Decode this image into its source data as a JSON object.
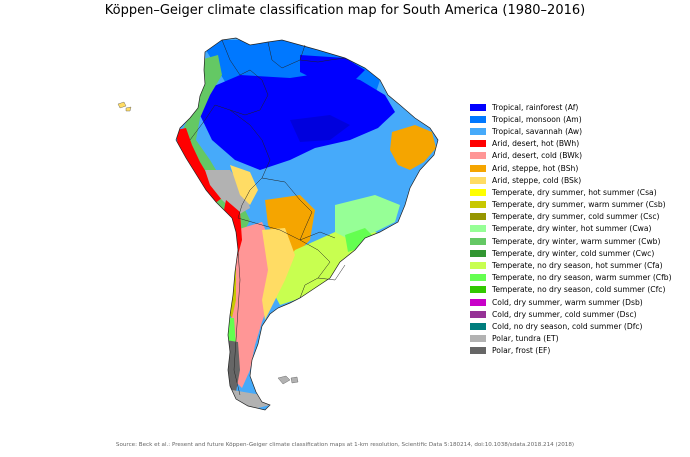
{
  "title": "Köppen–Geiger climate classification map for South America (1980–2016)",
  "legend": [
    {
      "label": "Tropical, rainforest (Af)",
      "color": "#0000ff"
    },
    {
      "label": "Tropical, monsoon (Am)",
      "color": "#0078ff"
    },
    {
      "label": "Tropical, savannah (Aw)",
      "color": "#46aafa"
    },
    {
      "label": "Arid, desert, hot (BWh)",
      "color": "#ff0000"
    },
    {
      "label": "Arid, desert, cold (BWk)",
      "color": "#ff9696"
    },
    {
      "label": "Arid, steppe, hot (BSh)",
      "color": "#f5a500"
    },
    {
      "label": "Arid, steppe, cold (BSk)",
      "color": "#ffdc64"
    },
    {
      "label": "Temperate, dry summer, hot summer (Csa)",
      "color": "#ffff00"
    },
    {
      "label": "Temperate, dry summer, warm summer (Csb)",
      "color": "#c8c800"
    },
    {
      "label": "Temperate, dry summer, cold summer (Csc)",
      "color": "#969600"
    },
    {
      "label": "Temperate, dry winter, hot summer (Cwa)",
      "color": "#96ff96"
    },
    {
      "label": "Temperate, dry winter, warm summer (Cwb)",
      "color": "#64c864"
    },
    {
      "label": "Temperate, dry winter, cold summer (Cwc)",
      "color": "#329632"
    },
    {
      "label": "Temperate, no dry season, hot summer (Cfa)",
      "color": "#c8ff50"
    },
    {
      "label": "Temperate, no dry season, warm summer (Cfb)",
      "color": "#64ff50"
    },
    {
      "label": "Temperate, no dry season, cold summer (Cfc)",
      "color": "#32c800"
    },
    {
      "label": "Cold, dry summer, warm summer (Dsb)",
      "color": "#c800c8"
    },
    {
      "label": "Cold, dry summer, cold summer (Dsc)",
      "color": "#963296"
    },
    {
      "label": "Cold, no dry season, cold summer (Dfc)",
      "color": "#007d7d"
    },
    {
      "label": "Polar, tundra (ET)",
      "color": "#b2b2b2"
    },
    {
      "label": "Polar, frost (EF)",
      "color": "#666666"
    }
  ],
  "source": "Source: Beck et al.: Present and future Köppen-Geiger climate classification maps at 1-km resolution, Scientific Data 5:180214, doi:10.1038/sdata.2018.214 (2018)"
}
